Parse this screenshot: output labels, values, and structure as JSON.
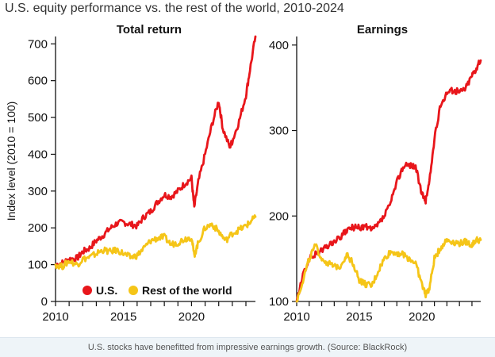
{
  "title": "U.S. equity performance vs. the rest of the world, 2010-2024",
  "caption": "U.S. stocks have benefitted from impressive earnings growth. (Source: BlackRock)",
  "colors": {
    "us": "#e8161b",
    "row": "#f5c518",
    "axis": "#111111",
    "caption_bg": "#eef4f8"
  },
  "legend": {
    "us": "U.S.",
    "row": "Rest of the world"
  },
  "chart_data": [
    {
      "type": "line",
      "title": "Total return",
      "ylabel": "Index level (2010 = 100)",
      "xlabel": "",
      "xlim": [
        2010,
        2024.7
      ],
      "ylim": [
        0,
        720
      ],
      "xticks": [
        2010,
        2015,
        2020
      ],
      "yticks": [
        0,
        100,
        200,
        300,
        400,
        500,
        600,
        700
      ],
      "grid": false,
      "legend_position": "bottom",
      "series": [
        {
          "name": "U.S.",
          "x": [
            2010,
            2010.5,
            2011,
            2011.6,
            2012,
            2012.5,
            2013,
            2013.5,
            2014,
            2014.5,
            2015,
            2015.5,
            2016,
            2016.5,
            2017,
            2017.5,
            2018,
            2018.5,
            2019,
            2019.5,
            2020,
            2020.2,
            2020.5,
            2021,
            2021.5,
            2022,
            2022.3,
            2022.8,
            2023,
            2023.5,
            2024,
            2024.3,
            2024.7
          ],
          "y": [
            100,
            105,
            115,
            118,
            135,
            145,
            165,
            180,
            198,
            212,
            215,
            210,
            205,
            230,
            245,
            270,
            290,
            285,
            300,
            320,
            335,
            255,
            325,
            400,
            480,
            545,
            470,
            420,
            435,
            490,
            560,
            630,
            720
          ]
        },
        {
          "name": "Rest of the world",
          "x": [
            2010,
            2010.5,
            2011,
            2011.6,
            2012,
            2012.5,
            2013,
            2013.5,
            2014,
            2014.5,
            2015,
            2015.5,
            2016,
            2016.5,
            2017,
            2017.5,
            2018,
            2018.5,
            2019,
            2019.5,
            2020,
            2020.2,
            2020.5,
            2021,
            2021.5,
            2022,
            2022.5,
            2023,
            2023.5,
            2024,
            2024.3,
            2024.7
          ],
          "y": [
            100,
            95,
            110,
            100,
            115,
            120,
            130,
            140,
            135,
            140,
            130,
            120,
            125,
            145,
            165,
            172,
            175,
            155,
            160,
            170,
            175,
            125,
            160,
            200,
            210,
            190,
            165,
            185,
            195,
            205,
            215,
            230
          ]
        }
      ]
    },
    {
      "type": "line",
      "title": "Earnings",
      "ylabel": "",
      "xlabel": "",
      "xlim": [
        2010,
        2024.7
      ],
      "ylim": [
        100,
        410
      ],
      "xticks": [
        2010,
        2015,
        2020
      ],
      "yticks": [
        100,
        200,
        300,
        400
      ],
      "grid": false,
      "series": [
        {
          "name": "U.S.",
          "x": [
            2010,
            2010.5,
            2011,
            2011.5,
            2012,
            2012.5,
            2013,
            2013.5,
            2014,
            2014.5,
            2015,
            2015.5,
            2016,
            2016.5,
            2017,
            2017.5,
            2018,
            2018.5,
            2019,
            2019.5,
            2020,
            2020.3,
            2020.6,
            2021,
            2021.5,
            2022,
            2022.5,
            2023,
            2023.5,
            2024,
            2024.3,
            2024.7
          ],
          "y": [
            100,
            130,
            150,
            155,
            160,
            165,
            170,
            175,
            183,
            187,
            186,
            188,
            183,
            190,
            200,
            215,
            240,
            258,
            260,
            258,
            225,
            218,
            240,
            290,
            330,
            345,
            347,
            345,
            350,
            365,
            372,
            382
          ]
        },
        {
          "name": "Rest of the world",
          "x": [
            2010,
            2010.5,
            2011,
            2011.5,
            2012,
            2012.5,
            2013,
            2013.5,
            2014,
            2014.5,
            2015,
            2015.5,
            2016,
            2016.5,
            2017,
            2017.5,
            2018,
            2018.5,
            2019,
            2019.5,
            2020,
            2020.3,
            2020.6,
            2021,
            2021.5,
            2022,
            2022.5,
            2023,
            2023.5,
            2024,
            2024.3,
            2024.7
          ],
          "y": [
            100,
            125,
            150,
            165,
            150,
            145,
            140,
            142,
            155,
            145,
            125,
            120,
            118,
            135,
            150,
            158,
            157,
            155,
            150,
            145,
            120,
            108,
            115,
            150,
            163,
            172,
            170,
            168,
            170,
            166,
            172,
            172
          ]
        }
      ]
    }
  ]
}
